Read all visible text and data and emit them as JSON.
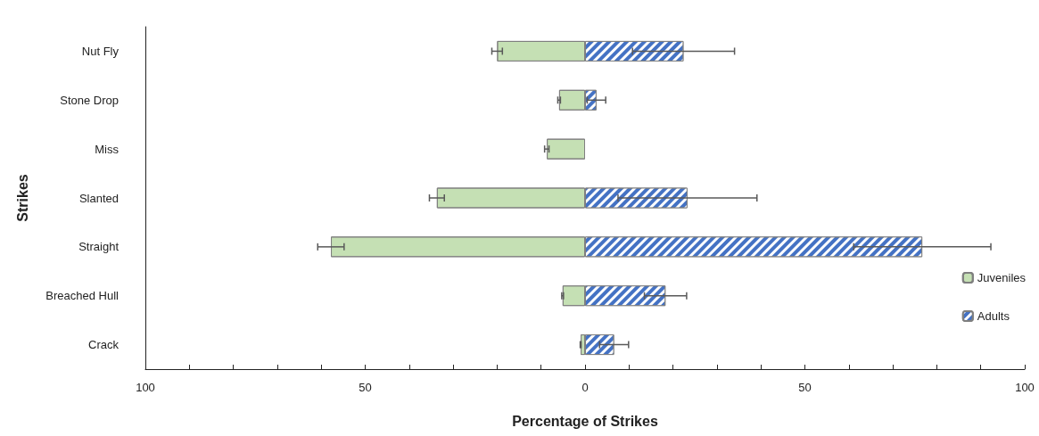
{
  "chart_data": {
    "type": "bar",
    "orientation": "horizontal",
    "xlabel": "Percentage of Strikes",
    "ylabel": "Strikes",
    "categories": [
      "Nut Fly",
      "Stone Drop",
      "Miss",
      "Slanted",
      "Straight",
      "Breached Hull",
      "Crack"
    ],
    "series": [
      {
        "name": "Juveniles",
        "color": "#c5e0b4",
        "values": [
          -20,
          -5.9,
          -8.7,
          -33.7,
          -57.8,
          -5.1,
          -1.0
        ],
        "errors": [
          1.2,
          0.3,
          0.5,
          1.7,
          3,
          0.2,
          0.1
        ]
      },
      {
        "name": "Adults",
        "color": "#4472c4",
        "values": [
          22.4,
          2.6,
          null,
          23.3,
          76.7,
          18.3,
          6.6
        ],
        "errors": [
          11.6,
          2.1,
          null,
          15.8,
          15.6,
          4.8,
          3.3
        ]
      }
    ],
    "xlim": [
      -100,
      100
    ],
    "xticks": [
      {
        "value": -100,
        "label": "100"
      },
      {
        "value": -90,
        "label": null
      },
      {
        "value": -80,
        "label": null
      },
      {
        "value": -70,
        "label": null
      },
      {
        "value": -60,
        "label": null
      },
      {
        "value": -50,
        "label": "50"
      },
      {
        "value": -40,
        "label": null
      },
      {
        "value": -30,
        "label": null
      },
      {
        "value": -20,
        "label": null
      },
      {
        "value": -10,
        "label": null
      },
      0,
      {
        "value": 10,
        "label": null
      },
      {
        "value": 20,
        "label": null
      },
      {
        "value": 30,
        "label": null
      },
      {
        "value": 40,
        "label": null
      },
      50,
      {
        "value": 60,
        "label": null
      },
      {
        "value": 70,
        "label": null
      },
      {
        "value": 80,
        "label": null
      },
      {
        "value": 90,
        "label": null
      },
      100
    ],
    "stacked": true,
    "grid": false,
    "legend": "right"
  }
}
